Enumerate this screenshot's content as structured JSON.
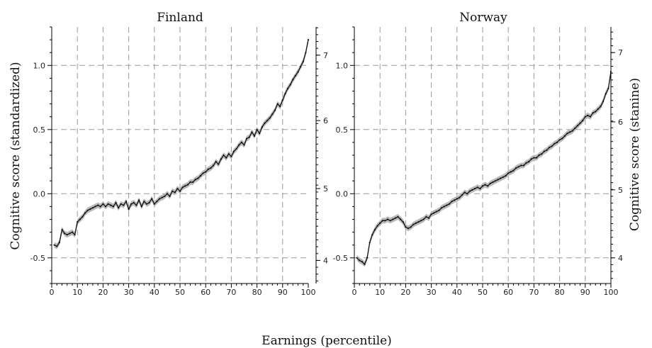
{
  "chart_data": {
    "type": "line",
    "xlabel": "Earnings (percentile)",
    "ylabel_left": "Cognitive score (standardized)",
    "ylabel_right": "Cognitive score (stanine)",
    "panels": [
      {
        "title": "Finland",
        "xlim": [
          0,
          100
        ],
        "ylim": [
          -0.7,
          1.3
        ],
        "x_ticks": [
          "0",
          "10",
          "20",
          "30",
          "40",
          "50",
          "60",
          "70",
          "80",
          "90",
          "100"
        ],
        "y_ticks": [
          "-0.5",
          "0.0",
          "0.5",
          "1.0"
        ],
        "right_ticks": [
          "4",
          "5",
          "6",
          "7"
        ],
        "right_tick_positions": [
          -0.52,
          0.04,
          0.57,
          1.08
        ],
        "series": [
          {
            "x": [
              1,
              2,
              3,
              4,
              5,
              6,
              7,
              8,
              9,
              10,
              11,
              12,
              13,
              14,
              15,
              16,
              17,
              18,
              19,
              20,
              21,
              22,
              23,
              24,
              25,
              26,
              27,
              28,
              29,
              30,
              31,
              32,
              33,
              34,
              35,
              36,
              37,
              38,
              39,
              40,
              41,
              42,
              43,
              44,
              45,
              46,
              47,
              48,
              49,
              50,
              51,
              52,
              53,
              54,
              55,
              56,
              57,
              58,
              59,
              60,
              61,
              62,
              63,
              64,
              65,
              66,
              67,
              68,
              69,
              70,
              71,
              72,
              73,
              74,
              75,
              76,
              77,
              78,
              79,
              80,
              81,
              82,
              83,
              84,
              85,
              86,
              87,
              88,
              89,
              90,
              91,
              92,
              93,
              94,
              95,
              96,
              97,
              98,
              99,
              100
            ],
            "y": [
              -0.4,
              -0.41,
              -0.38,
              -0.28,
              -0.31,
              -0.32,
              -0.31,
              -0.3,
              -0.32,
              -0.22,
              -0.2,
              -0.18,
              -0.15,
              -0.13,
              -0.12,
              -0.11,
              -0.1,
              -0.09,
              -0.1,
              -0.08,
              -0.1,
              -0.08,
              -0.09,
              -0.1,
              -0.07,
              -0.11,
              -0.08,
              -0.09,
              -0.06,
              -0.12,
              -0.08,
              -0.07,
              -0.09,
              -0.05,
              -0.1,
              -0.06,
              -0.08,
              -0.07,
              -0.04,
              -0.08,
              -0.06,
              -0.04,
              -0.03,
              -0.02,
              0.0,
              -0.02,
              0.02,
              0.01,
              0.04,
              0.02,
              0.05,
              0.06,
              0.07,
              0.09,
              0.09,
              0.11,
              0.12,
              0.14,
              0.16,
              0.17,
              0.19,
              0.2,
              0.22,
              0.25,
              0.23,
              0.27,
              0.3,
              0.28,
              0.31,
              0.29,
              0.33,
              0.35,
              0.38,
              0.4,
              0.38,
              0.43,
              0.44,
              0.48,
              0.45,
              0.5,
              0.47,
              0.52,
              0.55,
              0.57,
              0.59,
              0.62,
              0.65,
              0.7,
              0.68,
              0.73,
              0.78,
              0.82,
              0.85,
              0.89,
              0.92,
              0.95,
              0.99,
              1.03,
              1.1,
              1.2
            ]
          }
        ]
      },
      {
        "title": "Norway",
        "xlim": [
          0,
          100
        ],
        "ylim": [
          -0.7,
          1.3
        ],
        "x_ticks": [
          "0",
          "10",
          "20",
          "30",
          "40",
          "50",
          "60",
          "70",
          "80",
          "90",
          "100"
        ],
        "y_ticks": [
          "-0.5",
          "0.0",
          "0.5",
          "1.0"
        ],
        "right_ticks": [
          "4",
          "5",
          "6",
          "7"
        ],
        "right_tick_positions": [
          -0.5,
          0.03,
          0.56,
          1.1
        ],
        "series": [
          {
            "x": [
              1,
              2,
              3,
              4,
              5,
              6,
              7,
              8,
              9,
              10,
              11,
              12,
              13,
              14,
              15,
              16,
              17,
              18,
              19,
              20,
              21,
              22,
              23,
              24,
              25,
              26,
              27,
              28,
              29,
              30,
              31,
              32,
              33,
              34,
              35,
              36,
              37,
              38,
              39,
              40,
              41,
              42,
              43,
              44,
              45,
              46,
              47,
              48,
              49,
              50,
              51,
              52,
              53,
              54,
              55,
              56,
              57,
              58,
              59,
              60,
              61,
              62,
              63,
              64,
              65,
              66,
              67,
              68,
              69,
              70,
              71,
              72,
              73,
              74,
              75,
              76,
              77,
              78,
              79,
              80,
              81,
              82,
              83,
              84,
              85,
              86,
              87,
              88,
              89,
              90,
              91,
              92,
              93,
              94,
              95,
              96,
              97,
              98,
              99,
              100
            ],
            "y": [
              -0.5,
              -0.52,
              -0.53,
              -0.55,
              -0.5,
              -0.38,
              -0.32,
              -0.28,
              -0.25,
              -0.23,
              -0.21,
              -0.21,
              -0.2,
              -0.21,
              -0.2,
              -0.19,
              -0.18,
              -0.2,
              -0.22,
              -0.26,
              -0.27,
              -0.26,
              -0.24,
              -0.23,
              -0.22,
              -0.21,
              -0.2,
              -0.18,
              -0.19,
              -0.16,
              -0.15,
              -0.14,
              -0.13,
              -0.11,
              -0.1,
              -0.09,
              -0.08,
              -0.06,
              -0.05,
              -0.04,
              -0.03,
              -0.01,
              0.01,
              0.0,
              0.02,
              0.03,
              0.04,
              0.05,
              0.04,
              0.06,
              0.07,
              0.06,
              0.08,
              0.09,
              0.1,
              0.11,
              0.12,
              0.13,
              0.14,
              0.16,
              0.17,
              0.18,
              0.2,
              0.21,
              0.22,
              0.22,
              0.24,
              0.25,
              0.27,
              0.28,
              0.28,
              0.3,
              0.31,
              0.33,
              0.34,
              0.36,
              0.37,
              0.39,
              0.4,
              0.42,
              0.43,
              0.45,
              0.47,
              0.48,
              0.49,
              0.51,
              0.53,
              0.55,
              0.57,
              0.6,
              0.61,
              0.6,
              0.63,
              0.64,
              0.66,
              0.68,
              0.72,
              0.78,
              0.82,
              0.95
            ]
          }
        ]
      }
    ]
  }
}
